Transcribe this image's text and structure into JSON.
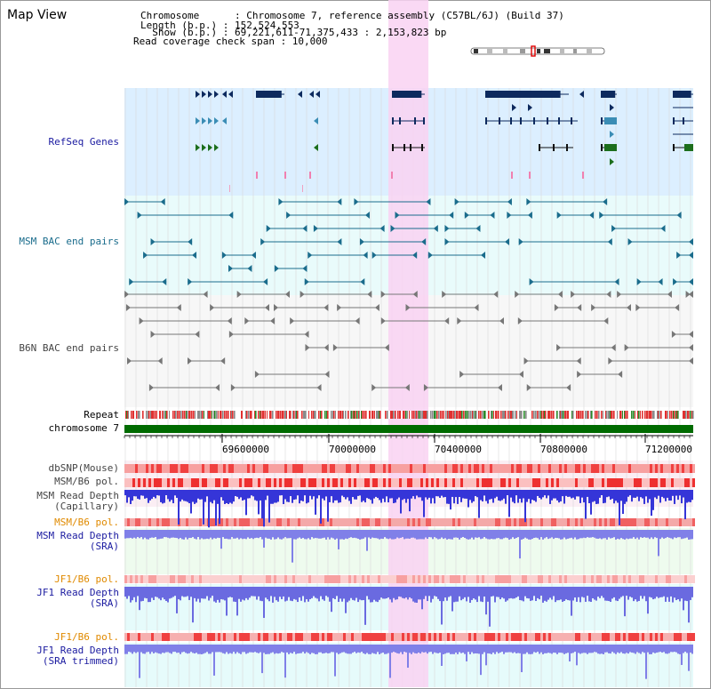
{
  "header": {
    "title": "Map View",
    "info_lines": [
      "Chromosome      : Chromosome 7, reference assembly (C57BL/6J) (Build 37)",
      "Length (b.p.) : 152,524,553",
      "  Show (b.p.) : 69,221,611-71,375,433 : 2,153,823 bp",
      "Read coverage check span : 10,000"
    ]
  },
  "tracks": {
    "refseq": "RefSeq Genes",
    "msm_bac": "MSM BAC end pairs",
    "b6n_bac": "B6N BAC end pairs",
    "repeat": "Repeat",
    "chromosome": "chromosome 7",
    "dbsnp": "dbSNP(Mouse)",
    "msm_b6_pol_1": "MSM/B6 pol.",
    "msm_depth_cap_1": "MSM Read Depth",
    "msm_depth_cap_2": "(Capillary)",
    "msm_b6_pol_2": "MSM/B6 pol.",
    "msm_depth_sra_1": "MSM Read Depth",
    "msm_depth_sra_2": "(SRA)",
    "jf1_b6_pol_1": "JF1/B6 pol.",
    "jf1_depth_sra_1": "JF1 Read Depth",
    "jf1_depth_sra_2": "(SRA)",
    "jf1_b6_pol_2": "JF1/B6 pol.",
    "jf1_depth_trim_1": "JF1 Read Depth",
    "jf1_depth_trim_2": "(SRA trimmed)"
  },
  "axis": {
    "ticks": [
      "69600000",
      "70000000",
      "70400000",
      "70800000",
      "71200000"
    ]
  },
  "colors": {
    "refseq_bg": "#dcefff",
    "bac_bg": "#e9fbfb",
    "highlight": "#f9d2f2",
    "gene_dark": "#0d2a5e",
    "gene_mid": "#3b8db5",
    "gene_green": "#1c6e1c",
    "bac_msm": "#1a6c8c",
    "bac_b6n": "#777777",
    "chromosome_bar": "#006b00",
    "pol_red": "#f04040",
    "depth_blue": "#3535d8",
    "label_blue": "#1a1aa0",
    "label_orange": "#e08a00",
    "label_teal": "#1a6c8c"
  }
}
